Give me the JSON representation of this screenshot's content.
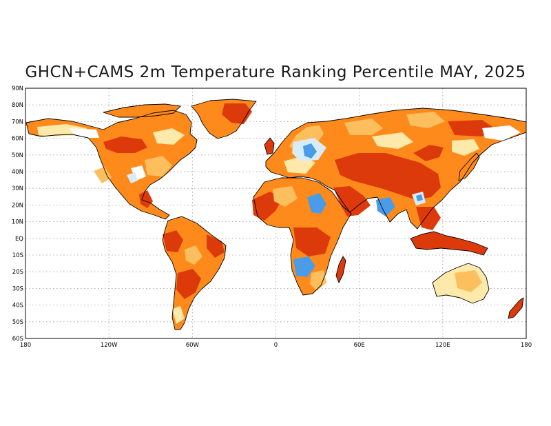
{
  "title": "GHCN+CAMS 2m Temperature Ranking Percentile MAY, 2025",
  "lat_ticks": [
    {
      "value": 90,
      "label": "90N"
    },
    {
      "value": 80,
      "label": "80N"
    },
    {
      "value": 70,
      "label": "70N"
    },
    {
      "value": 60,
      "label": "60N"
    },
    {
      "value": 50,
      "label": "50N"
    },
    {
      "value": 40,
      "label": "40N"
    },
    {
      "value": 30,
      "label": "30N"
    },
    {
      "value": 20,
      "label": "20N"
    },
    {
      "value": 10,
      "label": "10N"
    },
    {
      "value": 0,
      "label": "EQ"
    },
    {
      "value": -10,
      "label": "10S"
    },
    {
      "value": -20,
      "label": "20S"
    },
    {
      "value": -30,
      "label": "30S"
    },
    {
      "value": -40,
      "label": "40S"
    },
    {
      "value": -50,
      "label": "50S"
    },
    {
      "value": -60,
      "label": "60S"
    }
  ],
  "lon_ticks": [
    {
      "value": -180,
      "label": "180"
    },
    {
      "value": -120,
      "label": "120W"
    },
    {
      "value": -60,
      "label": "60W"
    },
    {
      "value": 0,
      "label": "0"
    },
    {
      "value": 60,
      "label": "60E"
    },
    {
      "value": 120,
      "label": "120E"
    },
    {
      "value": 180,
      "label": "180"
    }
  ],
  "extent": {
    "lon": [
      -180,
      180
    ],
    "lat": [
      -60,
      90
    ]
  },
  "colors": {
    "much_above": "#dd3a0c",
    "above": "#ff8a1c",
    "slightly_above": "#fdbf5e",
    "near_normal": "#fde9a9",
    "slightly_below": "#d8ecf7",
    "below": "#4a9be8"
  }
}
